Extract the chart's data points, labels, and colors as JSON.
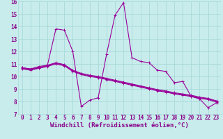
{
  "xlabel": "Windchill (Refroidissement éolien,°C)",
  "ylabel": "",
  "background_color": "#c8ecec",
  "grid_color": "#a8d8d8",
  "line_color": "#990099",
  "xlim": [
    -0.5,
    23.5
  ],
  "ylim": [
    7,
    16
  ],
  "xticks": [
    0,
    1,
    2,
    3,
    4,
    5,
    6,
    7,
    8,
    9,
    10,
    11,
    12,
    13,
    14,
    15,
    16,
    17,
    18,
    19,
    20,
    21,
    22,
    23
  ],
  "yticks": [
    7,
    8,
    9,
    10,
    11,
    12,
    13,
    14,
    15,
    16
  ],
  "series": [
    [
      10.7,
      10.6,
      10.8,
      10.9,
      13.8,
      13.7,
      12.0,
      7.6,
      8.1,
      8.3,
      11.8,
      14.9,
      15.9,
      11.5,
      11.2,
      11.1,
      10.5,
      10.4,
      9.5,
      9.6,
      8.4,
      8.2,
      7.5,
      7.9
    ],
    [
      10.7,
      10.6,
      10.7,
      10.9,
      11.1,
      10.95,
      10.5,
      10.25,
      10.1,
      10.0,
      9.85,
      9.7,
      9.55,
      9.4,
      9.25,
      9.1,
      8.95,
      8.85,
      8.7,
      8.6,
      8.5,
      8.35,
      8.25,
      8.05
    ],
    [
      10.65,
      10.55,
      10.7,
      10.85,
      11.05,
      10.9,
      10.45,
      10.2,
      10.05,
      9.95,
      9.8,
      9.65,
      9.5,
      9.35,
      9.2,
      9.05,
      8.9,
      8.8,
      8.65,
      8.55,
      8.45,
      8.3,
      8.2,
      8.0
    ],
    [
      10.6,
      10.5,
      10.65,
      10.8,
      11.0,
      10.85,
      10.4,
      10.15,
      10.0,
      9.9,
      9.75,
      9.6,
      9.45,
      9.3,
      9.15,
      9.0,
      8.85,
      8.75,
      8.6,
      8.5,
      8.4,
      8.25,
      8.15,
      7.95
    ]
  ],
  "font_color": "#880088",
  "tick_label_size": 5.5,
  "xlabel_size": 6.5,
  "line_width": 0.8,
  "marker_size": 3.0
}
